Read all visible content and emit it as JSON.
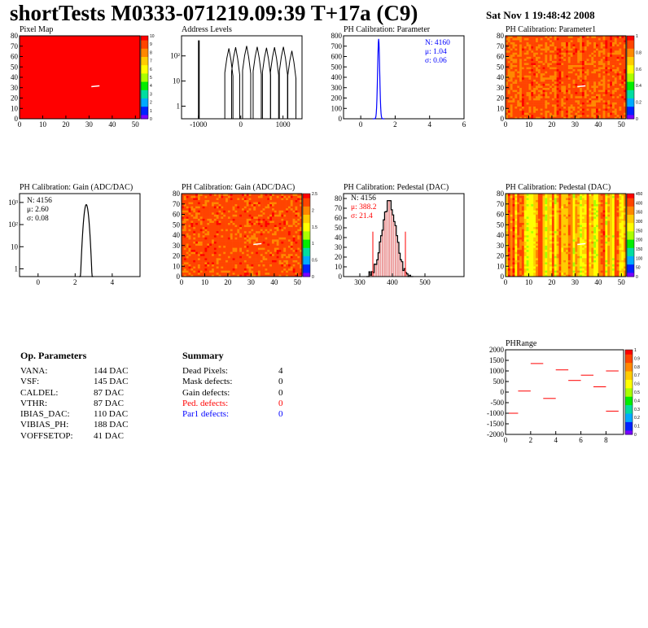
{
  "header": {
    "title": "shortTests M0333-071219.09:39 T+17a (C9)",
    "date": "Sat Nov  1 19:48:42 2008"
  },
  "colors": {
    "red": "#ff0000",
    "blue": "#0000ff",
    "pedestal_fill": "#dd3333"
  },
  "chart_data": [
    {
      "id": "pixel-map",
      "type": "heatmap",
      "title": "Pixel Map",
      "xlim": [
        0,
        52
      ],
      "ylim": [
        0,
        80
      ],
      "xticks": [
        0,
        10,
        20,
        30,
        40,
        50
      ],
      "yticks": [
        0,
        10,
        20,
        30,
        40,
        50,
        60,
        70,
        80
      ],
      "zlim": [
        0,
        10
      ],
      "zticks": [
        "0",
        "1",
        "2",
        "3",
        "4",
        "5",
        "6",
        "7",
        "8",
        "9",
        "10"
      ],
      "dominant_value": 10
    },
    {
      "id": "address-levels",
      "type": "line",
      "title": "Address Levels",
      "xlim": [
        -1400,
        1450
      ],
      "log_y": true,
      "xticks": [
        "-1000",
        "0",
        "1000"
      ],
      "yticks": [
        "1",
        "10",
        "10²"
      ],
      "peaks": [
        [
          -1000,
          400
        ],
        [
          -280,
          200
        ],
        [
          -120,
          220
        ],
        [
          140,
          250
        ],
        [
          390,
          230
        ],
        [
          610,
          210
        ],
        [
          800,
          220
        ],
        [
          1010,
          230
        ],
        [
          1210,
          160
        ]
      ]
    },
    {
      "id": "ph-parameter",
      "type": "line",
      "title": "PH Calibration: Parameter",
      "xlim": [
        -1,
        6
      ],
      "ylim": [
        0,
        800
      ],
      "xticks": [
        "0",
        "2",
        "4",
        "6"
      ],
      "yticks": [
        "0",
        "100",
        "200",
        "300",
        "400",
        "500",
        "600",
        "700",
        "800"
      ],
      "stats": {
        "n": "N: 4160",
        "mean": "μ: 1.04",
        "sigma": "σ: 0.06"
      },
      "mean": 1.04,
      "sigma": 0.06,
      "peak": 770
    },
    {
      "id": "ph-parameter1",
      "type": "heatmap",
      "title": "PH Calibration: Parameter1",
      "xlim": [
        0,
        52
      ],
      "ylim": [
        0,
        80
      ],
      "xticks": [
        0,
        10,
        20,
        30,
        40,
        50
      ],
      "yticks": [
        0,
        10,
        20,
        30,
        40,
        50,
        60,
        70,
        80
      ],
      "zticks": [
        "0",
        "0.2",
        "0.4",
        "0.6",
        "0.8",
        "1"
      ]
    },
    {
      "id": "ph-gain",
      "type": "line",
      "title": "PH Calibration: Gain (ADC/DAC)",
      "xlim": [
        -1,
        5.5
      ],
      "log_y": true,
      "xticks": [
        "0",
        "2",
        "4"
      ],
      "yticks": [
        "1",
        "10",
        "10²",
        "10³"
      ],
      "stats": {
        "n": "N: 4156",
        "mean": "μ: 2.60",
        "sigma": "σ: 0.08"
      },
      "mean": 2.6,
      "sigma": 0.08,
      "peak": 800
    },
    {
      "id": "ph-gain-map",
      "type": "heatmap",
      "title": "PH Calibration: Gain (ADC/DAC)",
      "xlim": [
        0,
        52
      ],
      "ylim": [
        0,
        80
      ],
      "xticks": [
        0,
        10,
        20,
        30,
        40,
        50
      ],
      "yticks": [
        0,
        10,
        20,
        30,
        40,
        50,
        60,
        70,
        80
      ],
      "zticks": [
        "0",
        "0.5",
        "1",
        "1.5",
        "2",
        "2.5"
      ]
    },
    {
      "id": "ph-pedestal",
      "type": "line",
      "title": "PH Calibration: Pedestal (DAC)",
      "xlim": [
        250,
        620
      ],
      "ylim": [
        0,
        85
      ],
      "xticks": [
        "300",
        "400",
        "500"
      ],
      "yticks": [
        "0",
        "10",
        "20",
        "30",
        "40",
        "50",
        "60",
        "70",
        "80"
      ],
      "stats": {
        "n": "N: 4156",
        "mean": "μ: 388.2",
        "sigma": "σ: 21.4"
      },
      "mean": 388.2,
      "sigma": 21.4,
      "peak": 76,
      "cut_lines": [
        340,
        440
      ],
      "cut_height": 46
    },
    {
      "id": "ph-pedestal-map",
      "type": "heatmap",
      "title": "PH Calibration: Pedestal (DAC)",
      "xlim": [
        0,
        52
      ],
      "ylim": [
        0,
        80
      ],
      "xticks": [
        0,
        10,
        20,
        30,
        40,
        50
      ],
      "yticks": [
        0,
        10,
        20,
        30,
        40,
        50,
        60,
        70,
        80
      ],
      "zticks": [
        "0",
        "50",
        "100",
        "150",
        "200",
        "250",
        "300",
        "350",
        "400",
        "450"
      ]
    },
    {
      "id": "ph-range",
      "type": "scatter",
      "title": "PHRange",
      "xlim": [
        0,
        9.4
      ],
      "ylim": [
        -2000,
        2000
      ],
      "xticks": [
        "0",
        "2",
        "4",
        "6",
        "8"
      ],
      "yticks": [
        "-2000",
        "-1500",
        "-1000",
        "-500",
        "0",
        "500",
        "1000",
        "1500",
        "2000"
      ],
      "zticks": [
        "0",
        "0.1",
        "0.2",
        "0.3",
        "0.4",
        "0.5",
        "0.6",
        "0.7",
        "0.8",
        "0.9",
        "1"
      ],
      "segments": [
        [
          0,
          1,
          -1000
        ],
        [
          1,
          2,
          50
        ],
        [
          2,
          3,
          1350
        ],
        [
          3,
          4,
          -300
        ],
        [
          4,
          5,
          1050
        ],
        [
          5,
          6,
          550
        ],
        [
          6,
          7,
          800
        ],
        [
          7,
          8,
          250
        ],
        [
          8,
          9,
          1000
        ],
        [
          8,
          9,
          -900
        ]
      ]
    }
  ],
  "op_parameters": {
    "title": "Op. Parameters",
    "rows": [
      {
        "name": "VANA:",
        "value": "144 DAC"
      },
      {
        "name": "VSF:",
        "value": "145 DAC"
      },
      {
        "name": "CALDEL:",
        "value": "87 DAC"
      },
      {
        "name": "VTHR:",
        "value": "87 DAC"
      },
      {
        "name": "IBIAS_DAC:",
        "value": "110 DAC"
      },
      {
        "name": "VIBIAS_PH:",
        "value": "188 DAC"
      },
      {
        "name": "VOFFSETOP:",
        "value": "41 DAC"
      }
    ]
  },
  "summary": {
    "title": "Summary",
    "rows": [
      {
        "name": "Dead Pixels:",
        "value": "4",
        "color": "#000000"
      },
      {
        "name": "Mask defects:",
        "value": "0",
        "color": "#000000"
      },
      {
        "name": "Gain defects:",
        "value": "0",
        "color": "#000000"
      },
      {
        "name": "Ped. defects:",
        "value": "0",
        "color": "#ff0000"
      },
      {
        "name": "Par1 defects:",
        "value": "0",
        "color": "#0000ff"
      }
    ]
  }
}
